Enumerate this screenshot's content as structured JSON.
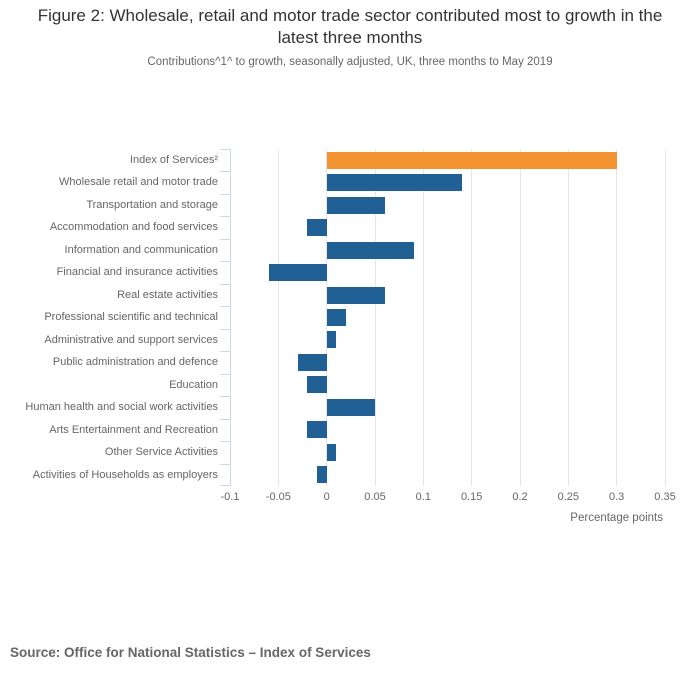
{
  "source": "Source: Office for National Statistics – Index of Services",
  "colors": {
    "bar": "#206095",
    "bar_highlight": "#f39431",
    "gridline": "#e6e6e6",
    "axis_line": "#ccd6eb",
    "text_muted": "#666666",
    "text_title": "#333333"
  },
  "chart_data": {
    "type": "bar",
    "orientation": "horizontal",
    "title": "Figure 2: Wholesale, retail and motor trade sector contributed most to growth in the latest three months",
    "subtitle": "Contributions^1^ to growth, seasonally adjusted, UK, three months to May 2019",
    "xlabel": "Percentage points",
    "xlim": [
      -0.1,
      0.35
    ],
    "xticks": [
      -0.1,
      -0.05,
      0,
      0.05,
      0.1,
      0.15,
      0.2,
      0.25,
      0.3,
      0.35
    ],
    "xtick_labels": [
      "-0.1",
      "-0.05",
      "0",
      "0.05",
      "0.1",
      "0.15",
      "0.2",
      "0.25",
      "0.3",
      "0.35"
    ],
    "grid": true,
    "legend": false,
    "highlight_category": "Index of Services²",
    "categories": [
      "Index of Services²",
      "Wholesale retail and motor trade",
      "Transportation and storage",
      "Accommodation and food services",
      "Information and communication",
      "Financial and insurance activities",
      "Real estate activities",
      "Professional scientific and technical",
      "Administrative and support services",
      "Public administration and defence",
      "Education",
      "Human health and social work activities",
      "Arts Entertainment and Recreation",
      "Other Service Activities",
      "Activities of Households as employers"
    ],
    "values": [
      0.3,
      0.14,
      0.06,
      -0.02,
      0.09,
      -0.06,
      0.06,
      0.02,
      0.01,
      -0.03,
      -0.02,
      0.05,
      -0.02,
      0.01,
      -0.01
    ]
  }
}
